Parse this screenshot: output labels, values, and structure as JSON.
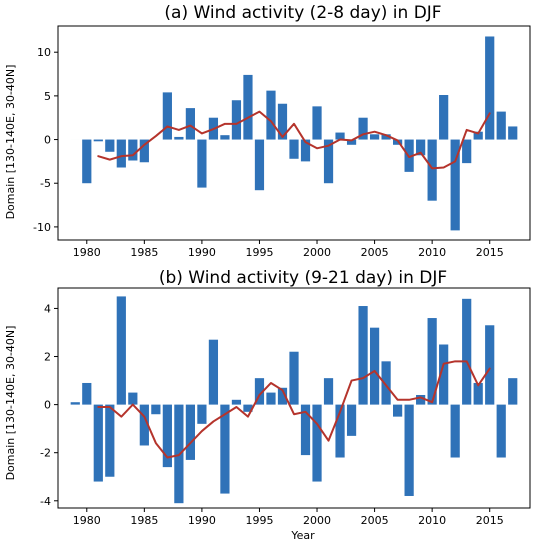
{
  "chart_data": [
    {
      "type": "bar",
      "title": "(a) Wind activity (2-8 day) in DJF",
      "xlabel": "",
      "ylabel": "Domain [130-140E, 30-40N]",
      "xlim": [
        1977.5,
        2018.5
      ],
      "ylim": [
        -11.5,
        13
      ],
      "xticks": [
        1980,
        1985,
        1990,
        1995,
        2000,
        2005,
        2010,
        2015
      ],
      "yticks": [
        -10,
        -5,
        0,
        5,
        10
      ],
      "bar_color": "#2f72b8",
      "line_color": "#b5342c",
      "bars": {
        "x": [
          1979,
          1980,
          1981,
          1982,
          1983,
          1984,
          1985,
          1986,
          1987,
          1988,
          1989,
          1990,
          1991,
          1992,
          1993,
          1994,
          1995,
          1996,
          1997,
          1998,
          1999,
          2000,
          2001,
          2002,
          2003,
          2004,
          2005,
          2006,
          2007,
          2008,
          2009,
          2010,
          2011,
          2012,
          2013,
          2014,
          2015,
          2016,
          2017
        ],
        "values": [
          0.0,
          -5.0,
          -0.2,
          -1.4,
          -3.2,
          -2.4,
          -2.6,
          0.0,
          5.4,
          0.3,
          3.6,
          -5.5,
          2.5,
          0.5,
          4.5,
          7.4,
          -5.8,
          5.6,
          4.1,
          -2.2,
          -2.5,
          3.8,
          -5.0,
          0.8,
          -0.6,
          2.5,
          0.6,
          0.6,
          -0.6,
          -3.7,
          -1.8,
          -7.0,
          5.1,
          -10.4,
          -2.7,
          0.9,
          11.8,
          3.2,
          1.5
        ]
      },
      "line": {
        "x": [
          1981,
          1982,
          1983,
          1984,
          1985,
          1986,
          1987,
          1988,
          1989,
          1990,
          1991,
          1992,
          1993,
          1994,
          1995,
          1996,
          1997,
          1998,
          1999,
          2000,
          2001,
          2002,
          2003,
          2004,
          2005,
          2006,
          2007,
          2008,
          2009,
          2010,
          2011,
          2012,
          2013,
          2014,
          2015
        ],
        "values": [
          -1.9,
          -2.3,
          -1.9,
          -1.8,
          -0.6,
          0.4,
          1.5,
          1.1,
          1.6,
          0.7,
          1.2,
          1.8,
          1.8,
          2.5,
          3.2,
          2.1,
          0.3,
          1.8,
          -0.3,
          -1.0,
          -0.7,
          0.0,
          -0.1,
          0.6,
          0.9,
          0.5,
          -0.1,
          -2.0,
          -1.5,
          -3.3,
          -3.2,
          -2.5,
          1.1,
          0.7,
          3.0
        ]
      }
    },
    {
      "type": "bar",
      "title": "(b) Wind activity (9-21 day) in DJF",
      "xlabel": "Year",
      "ylabel": "Domain [130-140E, 30-40N]",
      "xlim": [
        1977.5,
        2018.5
      ],
      "ylim": [
        -4.3,
        4.85
      ],
      "xticks": [
        1980,
        1985,
        1990,
        1995,
        2000,
        2005,
        2010,
        2015
      ],
      "yticks": [
        -4,
        -2,
        0,
        2,
        4
      ],
      "bar_color": "#2f72b8",
      "line_color": "#b5342c",
      "bars": {
        "x": [
          1979,
          1980,
          1981,
          1982,
          1983,
          1984,
          1985,
          1986,
          1987,
          1988,
          1989,
          1990,
          1991,
          1992,
          1993,
          1994,
          1995,
          1996,
          1997,
          1998,
          1999,
          2000,
          2001,
          2002,
          2003,
          2004,
          2005,
          2006,
          2007,
          2008,
          2009,
          2010,
          2011,
          2012,
          2013,
          2014,
          2015,
          2016,
          2017
        ],
        "values": [
          0.1,
          0.9,
          -3.2,
          -3.0,
          4.5,
          0.5,
          -1.7,
          -0.4,
          -2.6,
          -4.1,
          -2.3,
          -0.8,
          2.7,
          -3.7,
          0.2,
          -0.3,
          1.1,
          0.5,
          0.7,
          2.2,
          -2.1,
          -3.2,
          1.1,
          -2.2,
          -1.3,
          4.1,
          3.2,
          1.8,
          -0.5,
          -3.8,
          0.4,
          3.6,
          2.5,
          -2.2,
          4.4,
          0.9,
          3.3,
          -2.2,
          1.1
        ]
      },
      "line": {
        "x": [
          1981,
          1982,
          1983,
          1984,
          1985,
          1986,
          1987,
          1988,
          1989,
          1990,
          1991,
          1992,
          1993,
          1994,
          1995,
          1996,
          1997,
          1998,
          1999,
          2000,
          2001,
          2002,
          2003,
          2004,
          2005,
          2006,
          2007,
          2008,
          2009,
          2010,
          2011,
          2012,
          2013,
          2014,
          2015
        ],
        "values": [
          -0.1,
          -0.1,
          -0.5,
          0.0,
          -0.5,
          -1.6,
          -2.2,
          -2.1,
          -1.6,
          -1.1,
          -0.7,
          -0.4,
          -0.1,
          -0.5,
          0.4,
          0.9,
          0.6,
          -0.4,
          -0.3,
          -0.8,
          -1.5,
          -0.3,
          1.0,
          1.1,
          1.4,
          0.8,
          0.2,
          0.2,
          0.3,
          0.1,
          1.7,
          1.8,
          1.8,
          0.8,
          1.5
        ]
      }
    }
  ]
}
